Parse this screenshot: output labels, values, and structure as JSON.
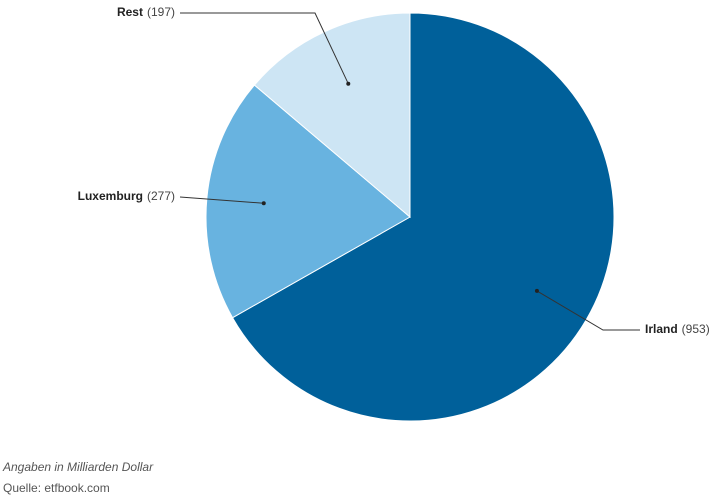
{
  "chart_data": {
    "type": "pie",
    "categories": [
      "Irland",
      "Luxemburg",
      "Rest"
    ],
    "values": [
      953,
      277,
      197
    ],
    "value_labels": [
      "(953)",
      "(277)",
      "(197)"
    ],
    "colors": [
      "#00609a",
      "#68b3e0",
      "#cde5f4"
    ],
    "note": "Angaben in Milliarden Dollar",
    "source": "Quelle: etfbook.com"
  }
}
